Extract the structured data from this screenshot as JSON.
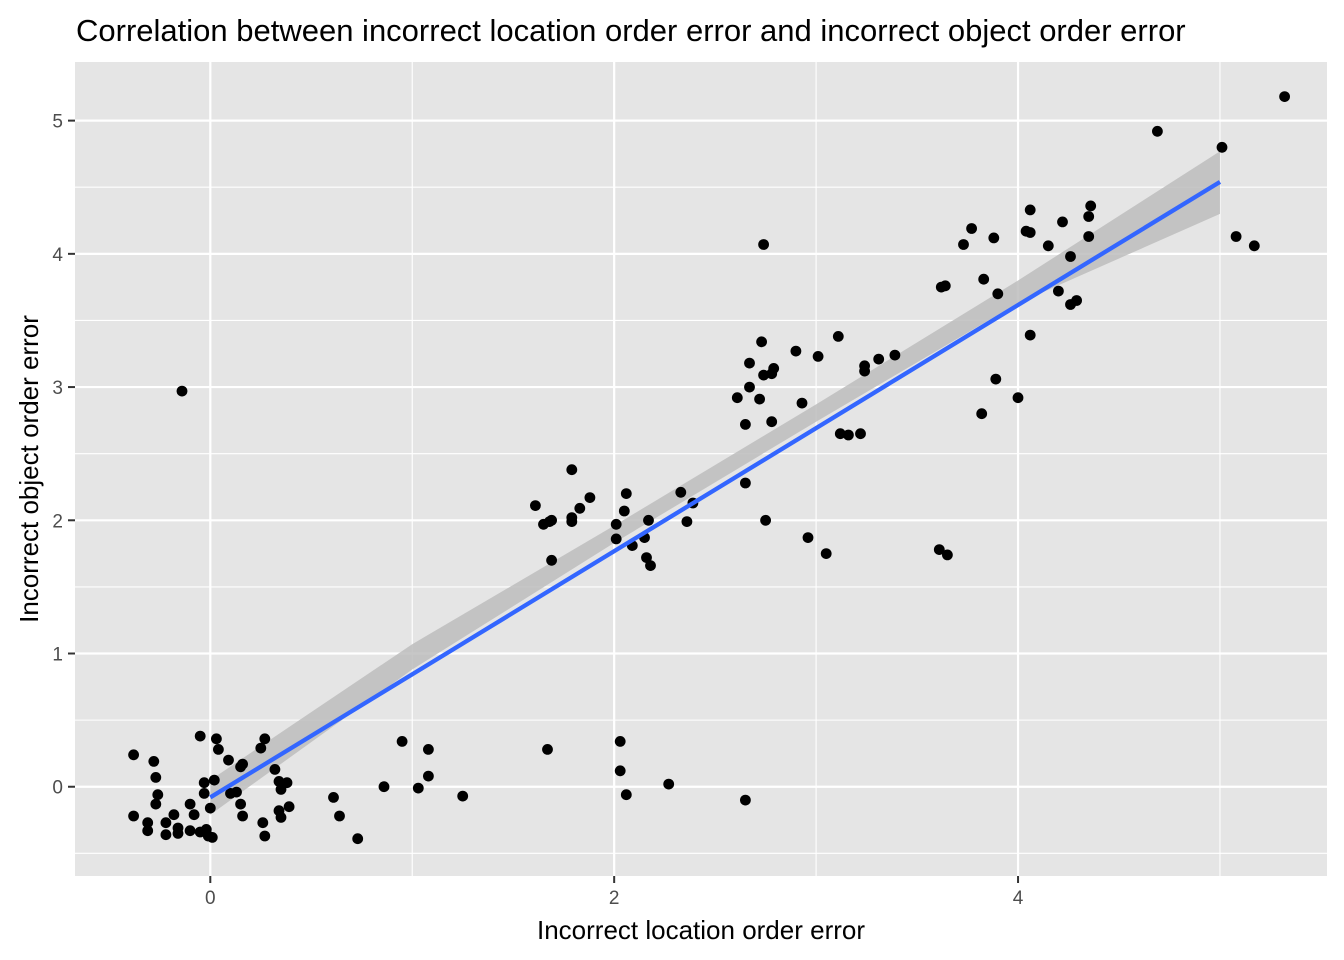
{
  "chart_data": {
    "type": "scatter",
    "title": "Correlation between incorrect location order error and incorrect object order error",
    "xlabel": "Incorrect location order error",
    "ylabel": "Incorrect object order error",
    "xlim": [
      -0.67,
      5.53
    ],
    "ylim": [
      -0.67,
      5.44
    ],
    "x_ticks": [
      0,
      2,
      4
    ],
    "y_ticks": [
      0,
      1,
      2,
      3,
      4,
      5
    ],
    "grid": true,
    "background": "#e5e5e5",
    "grid_color": "#ffffff",
    "point_color": "#000000",
    "fit_line_color": "#3366ff",
    "confidence_band_color": "#bdbdbd",
    "series": [
      {
        "type": "scatter",
        "points": [
          [
            -0.38,
            0.24
          ],
          [
            -0.28,
            0.19
          ],
          [
            -0.27,
            0.07
          ],
          [
            -0.26,
            -0.06
          ],
          [
            -0.27,
            -0.13
          ],
          [
            -0.38,
            -0.22
          ],
          [
            -0.31,
            -0.27
          ],
          [
            -0.31,
            -0.33
          ],
          [
            -0.22,
            -0.27
          ],
          [
            -0.22,
            -0.36
          ],
          [
            -0.18,
            -0.21
          ],
          [
            -0.16,
            -0.31
          ],
          [
            -0.16,
            -0.35
          ],
          [
            -0.1,
            -0.13
          ],
          [
            -0.1,
            -0.33
          ],
          [
            -0.08,
            -0.21
          ],
          [
            -0.14,
            2.97
          ],
          [
            -0.05,
            0.38
          ],
          [
            -0.05,
            -0.34
          ],
          [
            -0.02,
            -0.32
          ],
          [
            -0.03,
            0.03
          ],
          [
            -0.03,
            -0.05
          ],
          [
            -0.01,
            -0.37
          ],
          [
            0.0,
            -0.16
          ],
          [
            0.01,
            -0.38
          ],
          [
            0.02,
            0.05
          ],
          [
            0.03,
            0.36
          ],
          [
            0.04,
            0.28
          ],
          [
            0.09,
            0.2
          ],
          [
            0.1,
            -0.05
          ],
          [
            0.13,
            -0.04
          ],
          [
            0.15,
            0.15
          ],
          [
            0.16,
            0.17
          ],
          [
            0.15,
            -0.13
          ],
          [
            0.16,
            -0.22
          ],
          [
            0.25,
            0.29
          ],
          [
            0.27,
            0.36
          ],
          [
            0.26,
            -0.27
          ],
          [
            0.27,
            -0.37
          ],
          [
            0.32,
            0.13
          ],
          [
            0.34,
            0.04
          ],
          [
            0.35,
            -0.02
          ],
          [
            0.34,
            -0.18
          ],
          [
            0.35,
            -0.23
          ],
          [
            0.38,
            0.03
          ],
          [
            0.39,
            -0.15
          ],
          [
            0.61,
            -0.08
          ],
          [
            0.64,
            -0.22
          ],
          [
            0.73,
            -0.39
          ],
          [
            0.86,
            0.0
          ],
          [
            0.95,
            0.34
          ],
          [
            1.03,
            -0.01
          ],
          [
            1.08,
            0.28
          ],
          [
            1.08,
            0.08
          ],
          [
            1.25,
            -0.07
          ],
          [
            1.61,
            2.11
          ],
          [
            1.65,
            1.97
          ],
          [
            1.68,
            1.99
          ],
          [
            1.69,
            2.0
          ],
          [
            1.69,
            1.7
          ],
          [
            1.79,
            2.38
          ],
          [
            1.79,
            2.02
          ],
          [
            1.79,
            1.99
          ],
          [
            1.83,
            2.09
          ],
          [
            1.88,
            2.17
          ],
          [
            2.01,
            1.97
          ],
          [
            2.01,
            1.86
          ],
          [
            2.05,
            2.07
          ],
          [
            2.06,
            2.2
          ],
          [
            2.09,
            1.81
          ],
          [
            2.15,
            1.87
          ],
          [
            2.16,
            1.72
          ],
          [
            2.17,
            2.0
          ],
          [
            2.18,
            1.66
          ],
          [
            2.33,
            2.21
          ],
          [
            2.36,
            1.99
          ],
          [
            2.39,
            2.13
          ],
          [
            2.61,
            2.92
          ],
          [
            2.65,
            2.28
          ],
          [
            2.65,
            2.72
          ],
          [
            2.67,
            3.18
          ],
          [
            2.67,
            3.0
          ],
          [
            2.72,
            2.91
          ],
          [
            2.73,
            3.34
          ],
          [
            2.74,
            3.09
          ],
          [
            2.74,
            4.07
          ],
          [
            2.75,
            2.0
          ],
          [
            2.78,
            3.1
          ],
          [
            2.78,
            2.74
          ],
          [
            2.79,
            3.14
          ],
          [
            2.9,
            3.27
          ],
          [
            2.93,
            2.88
          ],
          [
            2.96,
            1.87
          ],
          [
            3.01,
            3.23
          ],
          [
            3.05,
            1.75
          ],
          [
            3.11,
            3.38
          ],
          [
            3.12,
            2.65
          ],
          [
            3.16,
            2.64
          ],
          [
            3.22,
            2.65
          ],
          [
            3.24,
            3.12
          ],
          [
            3.24,
            3.16
          ],
          [
            3.31,
            3.21
          ],
          [
            3.39,
            3.24
          ],
          [
            3.61,
            1.78
          ],
          [
            3.62,
            3.75
          ],
          [
            3.64,
            3.76
          ],
          [
            3.65,
            1.74
          ],
          [
            3.73,
            4.07
          ],
          [
            3.77,
            4.19
          ],
          [
            3.82,
            2.8
          ],
          [
            3.83,
            3.81
          ],
          [
            3.88,
            4.12
          ],
          [
            3.89,
            3.06
          ],
          [
            3.9,
            3.7
          ],
          [
            4.0,
            2.92
          ],
          [
            4.04,
            4.17
          ],
          [
            4.06,
            4.33
          ],
          [
            4.06,
            4.16
          ],
          [
            4.06,
            3.39
          ],
          [
            4.15,
            4.06
          ],
          [
            4.2,
            3.72
          ],
          [
            4.22,
            4.24
          ],
          [
            4.26,
            3.98
          ],
          [
            4.26,
            3.62
          ],
          [
            4.29,
            3.65
          ],
          [
            4.35,
            4.28
          ],
          [
            4.35,
            4.13
          ],
          [
            4.36,
            4.36
          ],
          [
            4.69,
            4.92
          ],
          [
            5.01,
            4.8
          ],
          [
            5.08,
            4.13
          ],
          [
            5.17,
            4.06
          ],
          [
            5.32,
            5.18
          ],
          [
            1.67,
            0.28
          ],
          [
            2.03,
            0.34
          ],
          [
            2.03,
            0.12
          ],
          [
            2.06,
            -0.06
          ],
          [
            2.27,
            0.02
          ],
          [
            2.65,
            -0.1
          ]
        ]
      }
    ],
    "fit_line": {
      "x": [
        0.0,
        5.0
      ],
      "y": [
        -0.08,
        4.54
      ]
    },
    "confidence_band": {
      "x": [
        0.0,
        1.0,
        2.0,
        3.0,
        4.0,
        5.0
      ],
      "lower": [
        -0.21,
        0.88,
        1.83,
        2.74,
        3.63,
        4.3
      ],
      "upper": [
        0.05,
        1.07,
        1.96,
        2.87,
        3.8,
        4.77
      ]
    }
  }
}
